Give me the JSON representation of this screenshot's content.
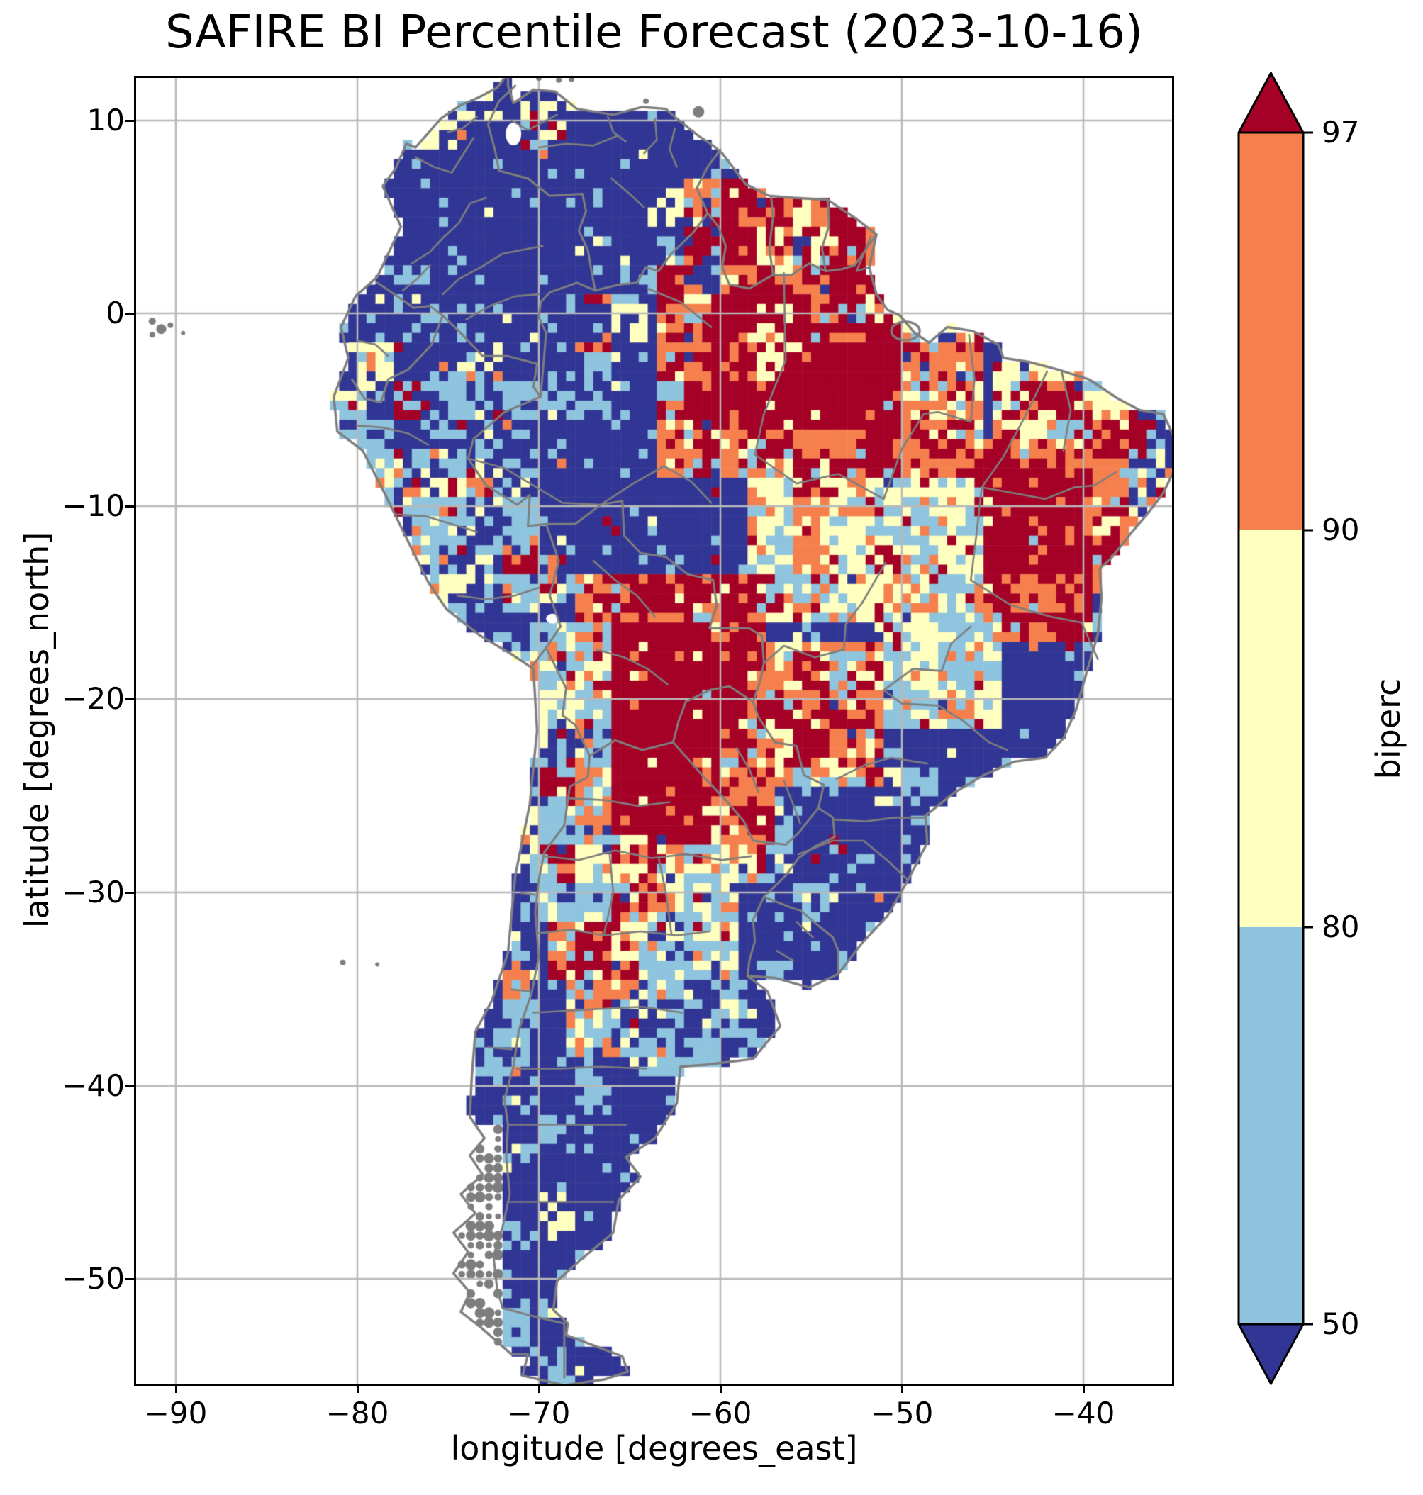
{
  "chart": {
    "title": "SAFIRE BI Percentile Forecast (2023-10-16)",
    "xlabel": "longitude [degrees_east]",
    "ylabel": "latitude [degrees_north]",
    "x_tick_labels": [
      "−90",
      "−80",
      "−70",
      "−60",
      "−50",
      "−40"
    ],
    "y_tick_labels": [
      "10",
      "0",
      "−10",
      "−20",
      "−30",
      "−40",
      "−50"
    ],
    "colorbar": {
      "label": "biperc",
      "tick_labels": [
        "97",
        "90",
        "80",
        "50"
      ]
    }
  },
  "chart_data": {
    "type": "heatmap",
    "title": "SAFIRE BI Percentile Forecast (2023-10-16)",
    "xlabel": "longitude [degrees_east]",
    "ylabel": "latitude [degrees_north]",
    "variable": "biperc",
    "region": "South America",
    "x_ticks": [
      -90,
      -80,
      -70,
      -60,
      -50,
      -40
    ],
    "y_ticks": [
      10,
      0,
      -10,
      -20,
      -30,
      -40,
      -50
    ],
    "xlim": [
      -92.2,
      -35.1
    ],
    "ylim": [
      -55.5,
      12.2
    ],
    "grid": true,
    "cell_size_degrees": 0.5,
    "colorbar_boundaries": [
      50,
      80,
      90,
      97
    ],
    "colorbar_extend": "both",
    "bins": [
      {
        "range": "<50",
        "color": "#313695"
      },
      {
        "range": "50-80",
        "color": "#8EC4DE"
      },
      {
        "range": "80-90",
        "color": "#FFFFBF"
      },
      {
        "range": "90-97",
        "color": "#F5804E"
      },
      {
        "range": ">97",
        "color": "#A50026"
      }
    ],
    "colors": {
      "grid": "#B9B9B9",
      "admin_borders": "#7E7E7E",
      "coastline": "#7E7E7E",
      "frame": "#000000",
      "background": "#FFFFFF"
    }
  }
}
